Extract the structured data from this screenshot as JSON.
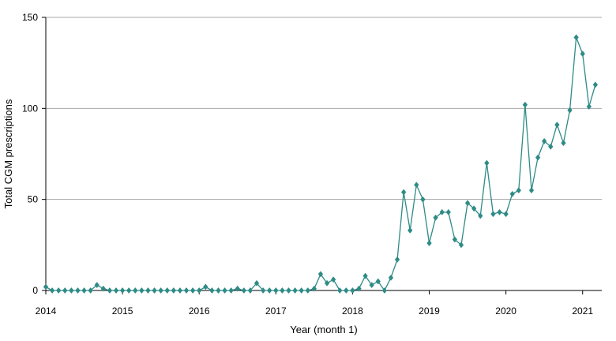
{
  "chart_data": {
    "type": "line",
    "title": "",
    "xlabel": "Year (month 1)",
    "ylabel": "Total CGM prescriptions",
    "ylim": [
      0,
      150
    ],
    "yticks": [
      0,
      50,
      100,
      150
    ],
    "xlim": [
      2014,
      2021.25
    ],
    "xtick_labels": [
      "2014",
      "2015",
      "2016",
      "2017",
      "2018",
      "2019",
      "2020",
      "2021"
    ],
    "grid": "horizontal",
    "legend": "none",
    "color": "#2e8b86",
    "marker": "diamond",
    "series": [
      {
        "x": [
          "2014-01",
          "2014-02",
          "2014-03",
          "2014-04",
          "2014-05",
          "2014-06",
          "2014-07",
          "2014-08",
          "2014-09",
          "2014-10",
          "2014-11",
          "2014-12",
          "2015-01",
          "2015-02",
          "2015-03",
          "2015-04",
          "2015-05",
          "2015-06",
          "2015-07",
          "2015-08",
          "2015-09",
          "2015-10",
          "2015-11",
          "2015-12",
          "2016-01",
          "2016-02",
          "2016-03",
          "2016-04",
          "2016-05",
          "2016-06",
          "2016-07",
          "2016-08",
          "2016-09",
          "2016-10",
          "2016-11",
          "2016-12",
          "2017-01",
          "2017-02",
          "2017-03",
          "2017-04",
          "2017-05",
          "2017-06",
          "2017-07",
          "2017-08",
          "2017-09",
          "2017-10",
          "2017-11",
          "2017-12",
          "2018-01",
          "2018-02",
          "2018-03",
          "2018-04",
          "2018-05",
          "2018-06",
          "2018-07",
          "2018-08",
          "2018-09",
          "2018-10",
          "2018-11",
          "2018-12",
          "2019-01",
          "2019-02",
          "2019-03",
          "2019-04",
          "2019-05",
          "2019-06",
          "2019-07",
          "2019-08",
          "2019-09",
          "2019-10",
          "2019-11",
          "2019-12",
          "2020-01",
          "2020-02",
          "2020-03",
          "2020-04",
          "2020-05",
          "2020-06",
          "2020-07",
          "2020-08",
          "2020-09",
          "2020-10",
          "2020-11",
          "2020-12",
          "2021-01",
          "2021-02",
          "2021-03"
        ],
        "values": [
          2,
          0,
          0,
          0,
          0,
          0,
          0,
          0,
          3,
          1,
          0,
          0,
          0,
          0,
          0,
          0,
          0,
          0,
          0,
          0,
          0,
          0,
          0,
          0,
          0,
          2,
          0,
          0,
          0,
          0,
          1,
          0,
          0,
          4,
          0,
          0,
          0,
          0,
          0,
          0,
          0,
          0,
          1,
          9,
          4,
          6,
          0,
          0,
          0,
          1,
          8,
          3,
          5,
          0,
          7,
          17,
          54,
          33,
          58,
          50,
          26,
          40,
          43,
          43,
          28,
          25,
          48,
          45,
          41,
          70,
          42,
          43,
          42,
          53,
          55,
          102,
          55,
          73,
          82,
          79,
          91,
          81,
          99,
          139,
          130,
          101,
          113
        ]
      }
    ]
  }
}
